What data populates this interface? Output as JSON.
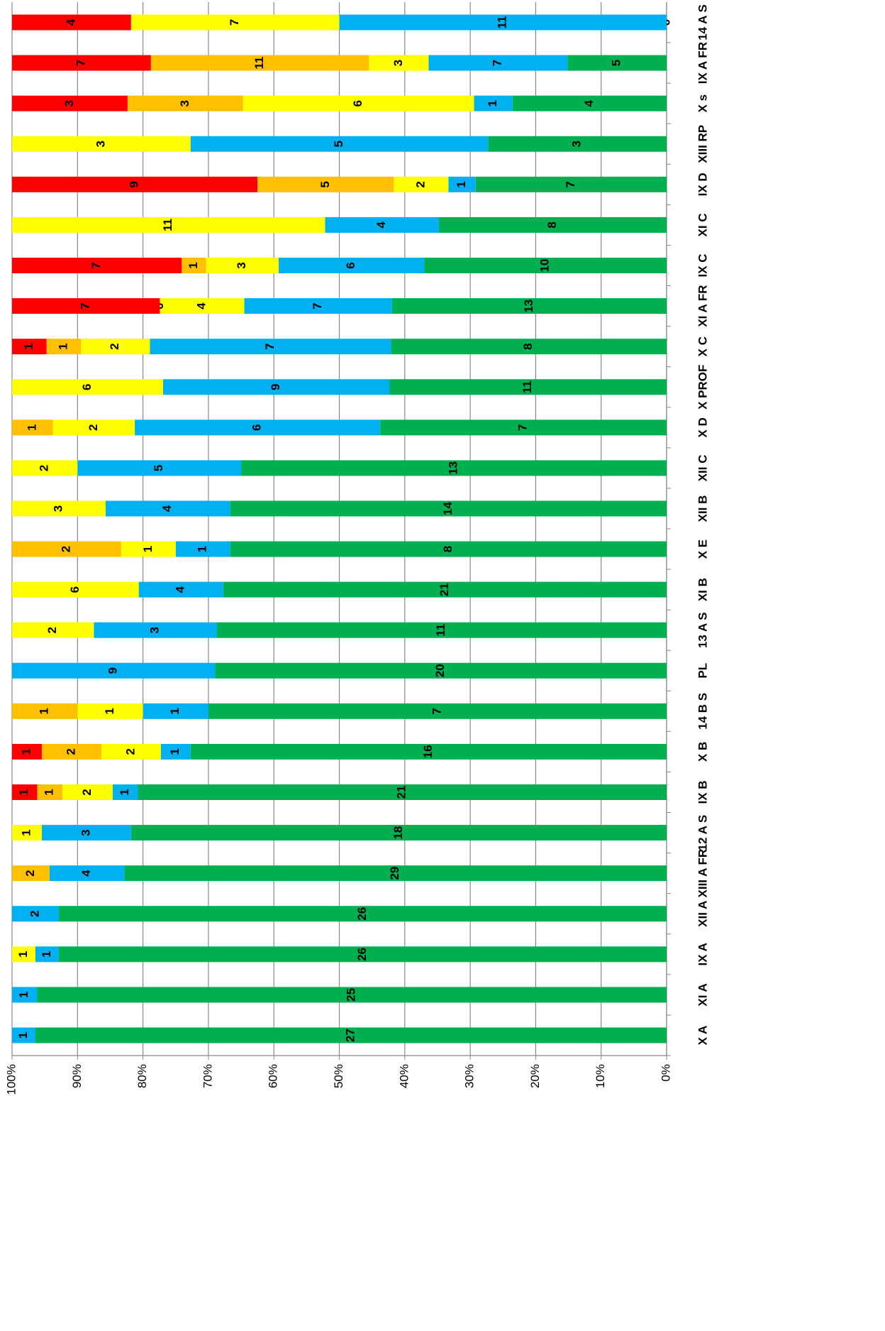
{
  "chart_data": {
    "type": "bar",
    "stacking": "percent",
    "categories": [
      "X  A",
      "XI  A",
      "IX  A",
      "XII A",
      "XIII A FR",
      "12 A S",
      "IX  B",
      "X   B",
      "14 B S",
      "PL",
      "13  A S",
      "XI  B",
      "X E",
      "XII B",
      "XII C",
      "X D",
      "X PROF",
      "X   C",
      "XI  A FR",
      "IX  C",
      "XI  C",
      "IX D",
      "XIII RP",
      "X s",
      "IX A FR",
      "14  A S"
    ],
    "series": [
      {
        "color": "#00b050",
        "values": [
          27,
          25,
          26,
          26,
          29,
          18,
          21,
          16,
          7,
          20,
          11,
          21,
          8,
          14,
          13,
          7,
          11,
          8,
          13,
          10,
          8,
          7,
          3,
          4,
          5,
          0
        ]
      },
      {
        "color": "#00b0f0",
        "values": [
          1,
          1,
          1,
          2,
          4,
          3,
          1,
          1,
          1,
          9,
          3,
          4,
          1,
          4,
          5,
          6,
          9,
          7,
          7,
          6,
          4,
          1,
          5,
          1,
          7,
          11
        ]
      },
      {
        "color": "#ffff00",
        "values": [
          null,
          null,
          1,
          null,
          null,
          1,
          2,
          2,
          1,
          null,
          2,
          6,
          1,
          3,
          2,
          2,
          6,
          2,
          4,
          3,
          11,
          2,
          3,
          6,
          3,
          7
        ]
      },
      {
        "color": "#ffc000",
        "values": [
          null,
          null,
          null,
          null,
          2,
          null,
          1,
          2,
          1,
          null,
          null,
          null,
          2,
          null,
          null,
          1,
          null,
          1,
          0,
          1,
          null,
          5,
          null,
          3,
          11,
          null
        ]
      },
      {
        "color": "#ff0000",
        "values": [
          null,
          null,
          null,
          null,
          null,
          null,
          1,
          1,
          null,
          null,
          null,
          null,
          null,
          null,
          null,
          null,
          null,
          1,
          7,
          7,
          null,
          9,
          null,
          3,
          7,
          4
        ]
      }
    ],
    "ylim": [
      0,
      100
    ],
    "yticks": [
      {
        "value": 0,
        "label": "0%"
      },
      {
        "value": 10,
        "label": "10%"
      },
      {
        "value": 20,
        "label": "20%"
      },
      {
        "value": 30,
        "label": "30%"
      },
      {
        "value": 40,
        "label": "40%"
      },
      {
        "value": 50,
        "label": "50%"
      },
      {
        "value": 60,
        "label": "60%"
      },
      {
        "value": 70,
        "label": "70%"
      },
      {
        "value": 80,
        "label": "80%"
      },
      {
        "value": 90,
        "label": "90%"
      },
      {
        "value": 100,
        "label": "100%"
      }
    ],
    "grid": true,
    "rotation": -90
  }
}
